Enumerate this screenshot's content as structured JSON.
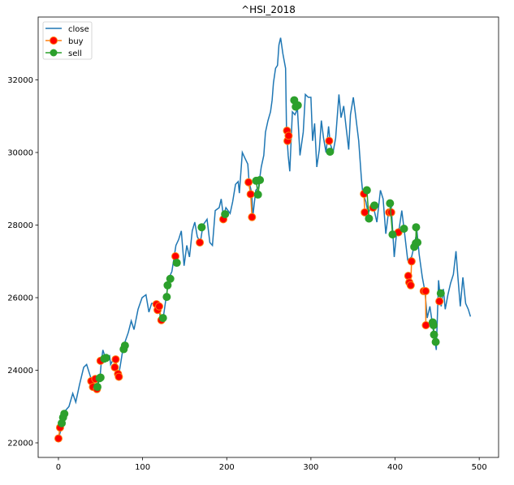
{
  "chart_data": {
    "type": "line",
    "title": "^HSI_2018",
    "xlabel": "",
    "ylabel": "",
    "xlim": [
      -24.1,
      523
    ],
    "ylim": [
      21598,
      33732
    ],
    "xticks": [
      0,
      100,
      200,
      300,
      400,
      500
    ],
    "yticks": [
      22000,
      24000,
      26000,
      28000,
      30000,
      32000
    ],
    "grid": false,
    "legend_position": "top-left",
    "colors": {
      "close": "#1f77b4",
      "buy_line": "#ff7f0e",
      "buy_marker": "#ff0000",
      "sell": "#2ca02c"
    },
    "series": [
      {
        "name": "close",
        "points": [
          [
            0,
            22120
          ],
          [
            4.5,
            22480
          ],
          [
            8,
            22880
          ],
          [
            12.5,
            23000
          ],
          [
            17,
            23360
          ],
          [
            20.6,
            23120
          ],
          [
            25,
            23600
          ],
          [
            30,
            24080
          ],
          [
            33.5,
            24160
          ],
          [
            36.7,
            23920
          ],
          [
            40,
            23680
          ],
          [
            44.7,
            23520
          ],
          [
            49.5,
            23840
          ],
          [
            51,
            24240
          ],
          [
            52.8,
            24560
          ],
          [
            56,
            24320
          ],
          [
            60.8,
            24400
          ],
          [
            62,
            24160
          ],
          [
            65.6,
            24320
          ],
          [
            68.9,
            24080
          ],
          [
            71.4,
            23840
          ],
          [
            73.7,
            24160
          ],
          [
            77,
            24640
          ],
          [
            83,
            25040
          ],
          [
            86.5,
            25360
          ],
          [
            89.8,
            25120
          ],
          [
            94.6,
            25680
          ],
          [
            99.4,
            26000
          ],
          [
            104,
            26080
          ],
          [
            107.5,
            25600
          ],
          [
            110.7,
            25840
          ],
          [
            115.5,
            25840
          ],
          [
            118.7,
            25760
          ],
          [
            122,
            25360
          ],
          [
            125,
            25520
          ],
          [
            128.4,
            26080
          ],
          [
            131.6,
            26560
          ],
          [
            134.8,
            26720
          ],
          [
            139.6,
            27440
          ],
          [
            142.8,
            27600
          ],
          [
            146,
            27840
          ],
          [
            149.3,
            26880
          ],
          [
            152.5,
            27440
          ],
          [
            155.7,
            27120
          ],
          [
            159,
            27840
          ],
          [
            162,
            28080
          ],
          [
            165,
            27680
          ],
          [
            168.6,
            27520
          ],
          [
            171.8,
            28000
          ],
          [
            176.6,
            28160
          ],
          [
            179.9,
            27520
          ],
          [
            183,
            27440
          ],
          [
            186.3,
            28400
          ],
          [
            191,
            28480
          ],
          [
            193.4,
            28720
          ],
          [
            196,
            28240
          ],
          [
            199,
            28480
          ],
          [
            204,
            28320
          ],
          [
            207,
            28640
          ],
          [
            210.4,
            29120
          ],
          [
            213.6,
            29200
          ],
          [
            215,
            28880
          ],
          [
            218.5,
            30000
          ],
          [
            221.7,
            29840
          ],
          [
            225,
            29680
          ],
          [
            226.5,
            29200
          ],
          [
            229.7,
            28880
          ],
          [
            231,
            28240
          ],
          [
            234.5,
            28960
          ],
          [
            237.7,
            29040
          ],
          [
            241,
            29600
          ],
          [
            244,
            29920
          ],
          [
            246,
            30560
          ],
          [
            249,
            30880
          ],
          [
            252,
            31120
          ],
          [
            253.9,
            31440
          ],
          [
            255.5,
            31920
          ],
          [
            258,
            32320
          ],
          [
            260.3,
            32400
          ],
          [
            262,
            32960
          ],
          [
            264,
            33160
          ],
          [
            266.7,
            32720
          ],
          [
            269.9,
            32320
          ],
          [
            271,
            30640
          ],
          [
            273,
            29920
          ],
          [
            274.9,
            29480
          ],
          [
            278,
            31120
          ],
          [
            281,
            31040
          ],
          [
            284,
            31200
          ],
          [
            287,
            29920
          ],
          [
            290.9,
            30560
          ],
          [
            293.4,
            31600
          ],
          [
            297,
            31520
          ],
          [
            300,
            31520
          ],
          [
            302,
            30320
          ],
          [
            304.4,
            30800
          ],
          [
            307,
            29600
          ],
          [
            310,
            30080
          ],
          [
            312.4,
            30880
          ],
          [
            315,
            30400
          ],
          [
            318,
            30000
          ],
          [
            321,
            30720
          ],
          [
            323,
            30240
          ],
          [
            326.3,
            30000
          ],
          [
            329.4,
            30400
          ],
          [
            333.3,
            31600
          ],
          [
            335.8,
            30960
          ],
          [
            339,
            31280
          ],
          [
            341.7,
            30720
          ],
          [
            344.9,
            30080
          ],
          [
            347,
            31040
          ],
          [
            350.4,
            31520
          ],
          [
            352.6,
            31120
          ],
          [
            356.8,
            30320
          ],
          [
            360,
            29280
          ],
          [
            361.6,
            28880
          ],
          [
            365.4,
            28640
          ],
          [
            368,
            28320
          ],
          [
            371,
            28480
          ],
          [
            374.5,
            28480
          ],
          [
            378.4,
            28080
          ],
          [
            382.6,
            28960
          ],
          [
            385.8,
            28720
          ],
          [
            389,
            27760
          ],
          [
            392,
            28320
          ],
          [
            395.4,
            28560
          ],
          [
            399,
            27120
          ],
          [
            402,
            27840
          ],
          [
            405,
            27920
          ],
          [
            408,
            28400
          ],
          [
            411.8,
            27680
          ],
          [
            415,
            27040
          ],
          [
            419.6,
            27120
          ],
          [
            422.8,
            27440
          ],
          [
            426,
            27840
          ],
          [
            428.6,
            27200
          ],
          [
            432.4,
            26560
          ],
          [
            435.6,
            26160
          ],
          [
            438.2,
            25440
          ],
          [
            441.4,
            25760
          ],
          [
            445.3,
            25120
          ],
          [
            449,
            24560
          ],
          [
            451.7,
            26480
          ],
          [
            454.8,
            25760
          ],
          [
            457.4,
            26240
          ],
          [
            459.6,
            25680
          ],
          [
            462.8,
            26080
          ],
          [
            466,
            26400
          ],
          [
            469.3,
            26640
          ],
          [
            472.4,
            27280
          ],
          [
            474.7,
            26560
          ],
          [
            477.5,
            25760
          ],
          [
            480.6,
            26560
          ],
          [
            483.9,
            25840
          ],
          [
            487,
            25680
          ],
          [
            489.6,
            25480
          ]
        ]
      },
      {
        "name": "buy",
        "points": [
          [
            0,
            22120
          ],
          [
            1.9,
            22420
          ],
          [
            39,
            23700
          ],
          [
            41,
            23540
          ],
          [
            43.8,
            23760
          ],
          [
            45.7,
            23480
          ],
          [
            50,
            24260
          ],
          [
            67,
            24080
          ],
          [
            68,
            24300
          ],
          [
            70.8,
            23900
          ],
          [
            71.8,
            23820
          ],
          [
            116.5,
            25820
          ],
          [
            117.8,
            25660
          ],
          [
            119.7,
            25760
          ],
          [
            122.3,
            25380
          ],
          [
            139,
            27140
          ],
          [
            168,
            27520
          ],
          [
            195.9,
            28160
          ],
          [
            225.9,
            29180
          ],
          [
            228.4,
            28850
          ],
          [
            230,
            28220
          ],
          [
            271.6,
            30600
          ],
          [
            272.2,
            30320
          ],
          [
            273.5,
            30460
          ],
          [
            321.7,
            30320
          ],
          [
            363,
            28860
          ],
          [
            364,
            28350
          ],
          [
            373.9,
            28480
          ],
          [
            393,
            28350
          ],
          [
            395.4,
            28350
          ],
          [
            404,
            27800
          ],
          [
            415.7,
            26600
          ],
          [
            416.9,
            26420
          ],
          [
            418.6,
            26340
          ],
          [
            419.6,
            27000
          ],
          [
            434,
            26180
          ],
          [
            436.3,
            26180
          ],
          [
            436.6,
            25240
          ],
          [
            452.7,
            25900
          ]
        ]
      },
      {
        "name": "sell",
        "points": [
          [
            3.9,
            22540
          ],
          [
            5.5,
            22700
          ],
          [
            7,
            22800
          ],
          [
            46.3,
            23540
          ],
          [
            48.9,
            23780
          ],
          [
            50,
            23800
          ],
          [
            54.4,
            24320
          ],
          [
            56.6,
            24340
          ],
          [
            77.5,
            24580
          ],
          [
            79,
            24680
          ],
          [
            124.2,
            25440
          ],
          [
            128.7,
            26020
          ],
          [
            129.7,
            26340
          ],
          [
            132.9,
            26520
          ],
          [
            140.6,
            26960
          ],
          [
            170.2,
            27940
          ],
          [
            198,
            28300
          ],
          [
            235,
            29220
          ],
          [
            237.1,
            28840
          ],
          [
            239.4,
            29240
          ],
          [
            280.2,
            31440
          ],
          [
            282,
            31260
          ],
          [
            284.4,
            31300
          ],
          [
            322.7,
            30020
          ],
          [
            366.5,
            28960
          ],
          [
            369,
            28180
          ],
          [
            375.5,
            28540
          ],
          [
            394,
            28600
          ],
          [
            397,
            27740
          ],
          [
            410.6,
            27900
          ],
          [
            422.8,
            27400
          ],
          [
            424.7,
            27500
          ],
          [
            425,
            27940
          ],
          [
            426.6,
            27520
          ],
          [
            444.7,
            25320
          ],
          [
            445.7,
            25240
          ],
          [
            446.3,
            24980
          ],
          [
            448.3,
            24780
          ],
          [
            454.3,
            26120
          ]
        ]
      }
    ]
  }
}
